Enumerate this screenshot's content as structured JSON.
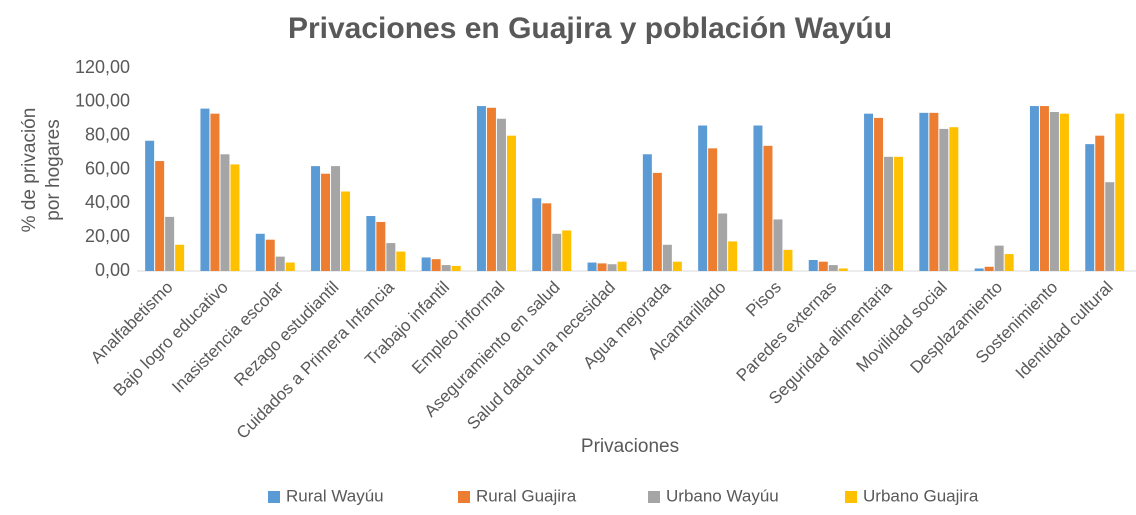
{
  "chart_data": {
    "type": "bar",
    "title": "Privaciones en Guajira y población Wayúu",
    "x_label": "Privaciones",
    "y_label": [
      "% de privación",
      "por hogares"
    ],
    "categories": [
      "Analfabetismo",
      "Bajo logro educativo",
      "Inasistencia escolar",
      "Rezago estudiantil",
      "Cuidados a Primera Infancia",
      "Trabajo infantil",
      "Empleo informal",
      "Aseguramiento en salud",
      "Salud dada una necesidad",
      "Agua mejorada",
      "Alcantarillado",
      "Pisos",
      "Paredes externas",
      "Seguridad alimentaria",
      "Movilidad social",
      "Desplazamiento",
      "Sostenimiento",
      "Identidad cultural"
    ],
    "series": [
      {
        "name": "Rural Wayúu",
        "color": "#5b9bd5",
        "values": [
          77,
          96,
          22,
          62,
          32.5,
          8,
          97.5,
          43,
          5,
          69,
          86,
          86,
          6.5,
          93,
          93.5,
          1.5,
          97.5,
          75
        ]
      },
      {
        "name": "Rural Guajira",
        "color": "#ed7d31",
        "values": [
          65,
          93,
          18.5,
          57.5,
          29,
          7,
          96.5,
          40,
          4.5,
          58,
          72.5,
          74,
          5.5,
          90.5,
          93.5,
          2.5,
          97.5,
          80
        ]
      },
      {
        "name": "Urbano Wayúu",
        "color": "#a5a5a5",
        "values": [
          32,
          69,
          8.5,
          62,
          16.5,
          3.5,
          90,
          22,
          4,
          15.5,
          34,
          30.5,
          3.5,
          67.5,
          84,
          15,
          94,
          52.5
        ]
      },
      {
        "name": "Urbano Guajira",
        "color": "#ffc000",
        "values": [
          15.5,
          63,
          5,
          47,
          11.5,
          3,
          80,
          24,
          5.5,
          5.5,
          17.5,
          12.5,
          1.5,
          67.5,
          85,
          10,
          93,
          93
        ]
      }
    ],
    "ylim": [
      0,
      120
    ],
    "yticks": [
      {
        "value": 0,
        "label": "0,00"
      },
      {
        "value": 20,
        "label": "20,00"
      },
      {
        "value": 40,
        "label": "40,00"
      },
      {
        "value": 60,
        "label": "60,00"
      },
      {
        "value": 80,
        "label": "80,00"
      },
      {
        "value": 100,
        "label": "100,00"
      },
      {
        "value": 120,
        "label": "120,00"
      }
    ],
    "grid": false,
    "legend": "bottom"
  }
}
